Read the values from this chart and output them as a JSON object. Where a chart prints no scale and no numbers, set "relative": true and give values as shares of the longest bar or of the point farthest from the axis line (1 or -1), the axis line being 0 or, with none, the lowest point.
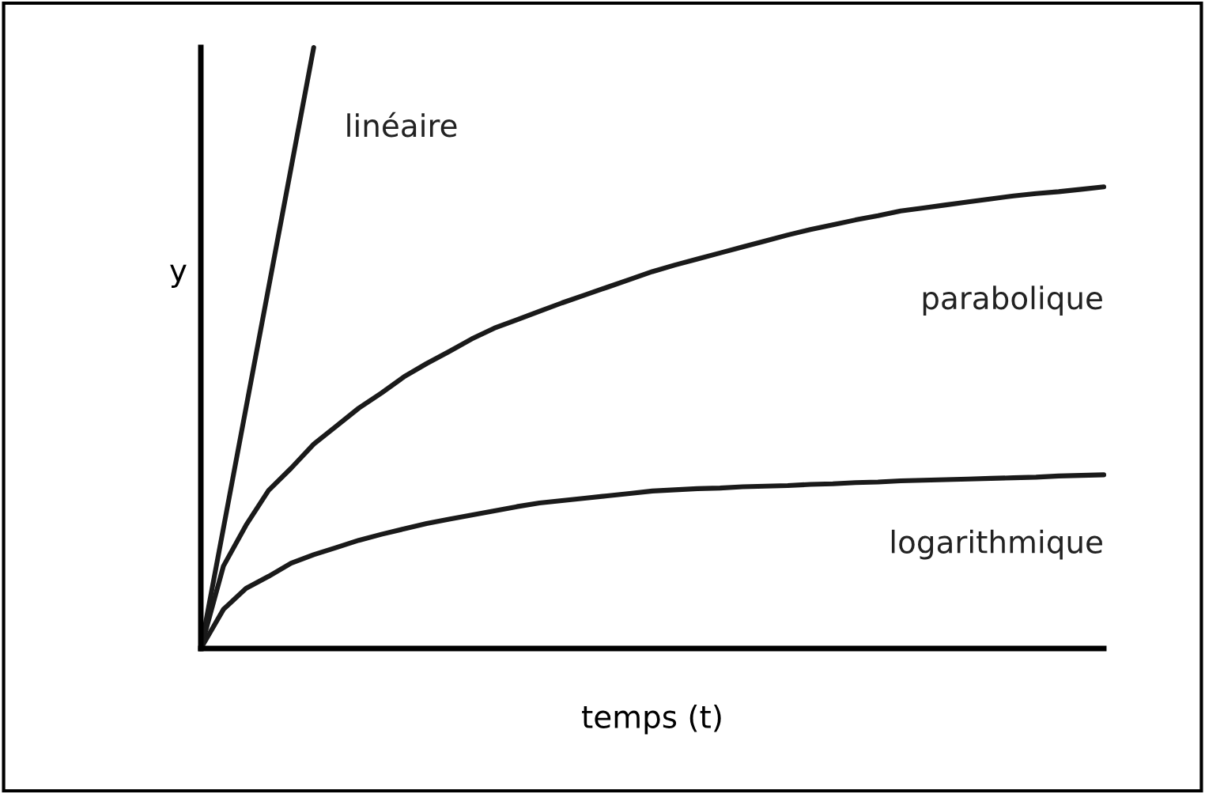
{
  "chart_data": {
    "type": "line",
    "relative": true,
    "xlabel": "temps (t)",
    "ylabel": "y",
    "legend": false,
    "marker": "none",
    "line_style": "solid",
    "categories": [
      null,
      null,
      null,
      null,
      null,
      null,
      null,
      null,
      null,
      null,
      null,
      null,
      null,
      null,
      null,
      null,
      null,
      null,
      null,
      null,
      null,
      null,
      null,
      null,
      null,
      null,
      null,
      null,
      null,
      null,
      null,
      null,
      null,
      null,
      null,
      null,
      null,
      null,
      null,
      null,
      null
    ],
    "series": [
      {
        "name": "linéaire",
        "color": "#1a1a1a",
        "values": [
          0,
          0.2,
          0.4,
          0.6,
          0.8,
          1,
          null,
          null,
          null,
          null,
          null,
          null,
          null,
          null,
          null,
          null,
          null,
          null,
          null,
          null,
          null,
          null,
          null,
          null,
          null,
          null,
          null,
          null,
          null,
          null,
          null,
          null,
          null,
          null,
          null,
          null,
          null,
          null,
          null,
          null,
          null
        ]
      },
      {
        "name": "parabolique",
        "color": "#1a1a1a",
        "values": [
          0,
          0.137,
          0.205,
          0.263,
          0.3,
          0.34,
          0.37,
          0.4,
          0.425,
          0.452,
          0.474,
          0.494,
          0.515,
          0.533,
          0.547,
          0.561,
          0.575,
          0.588,
          0.601,
          0.614,
          0.627,
          0.638,
          0.648,
          0.658,
          0.668,
          0.678,
          0.688,
          0.697,
          0.705,
          0.713,
          0.72,
          0.728,
          0.733,
          0.738,
          0.743,
          0.748,
          0.753,
          0.757,
          0.76,
          0.764,
          0.768
        ]
      },
      {
        "name": "logarithmique",
        "color": "#1a1a1a",
        "values": [
          0,
          0.065,
          0.1,
          0.12,
          0.142,
          0.156,
          0.168,
          0.18,
          0.19,
          0.199,
          0.208,
          0.215,
          0.222,
          0.229,
          0.236,
          0.242,
          0.246,
          0.25,
          0.254,
          0.258,
          0.262,
          0.264,
          0.266,
          0.267,
          0.269,
          0.27,
          0.271,
          0.273,
          0.274,
          0.276,
          0.277,
          0.279,
          0.28,
          0.281,
          0.282,
          0.283,
          0.284,
          0.285,
          0.287,
          0.288,
          0.289
        ]
      }
    ]
  }
}
